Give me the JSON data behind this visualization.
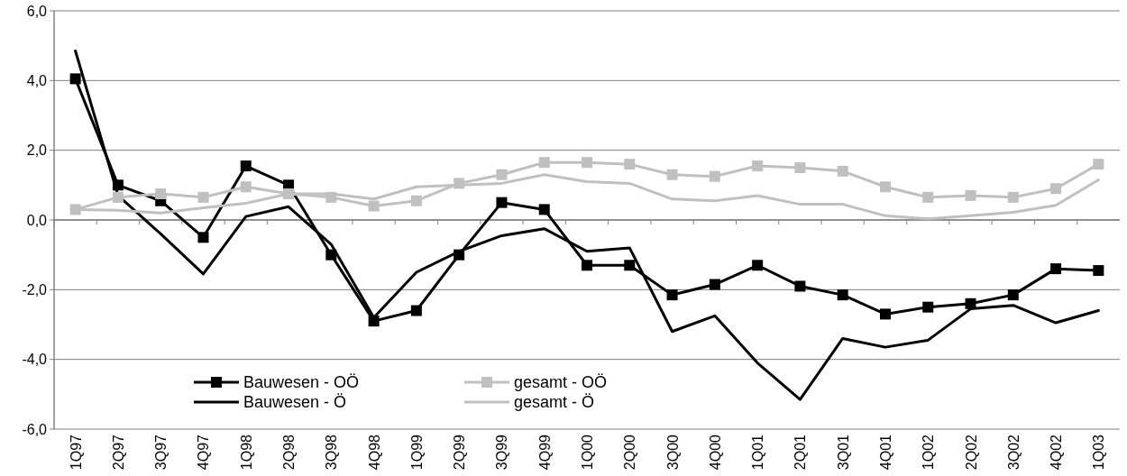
{
  "chart_data": {
    "type": "line",
    "categories": [
      "1Q97",
      "2Q97",
      "3Q97",
      "4Q97",
      "1Q98",
      "2Q98",
      "3Q98",
      "4Q98",
      "1Q99",
      "2Q99",
      "3Q99",
      "4Q99",
      "1Q00",
      "2Q00",
      "3Q00",
      "4Q00",
      "1Q01",
      "2Q01",
      "3Q01",
      "4Q01",
      "1Q02",
      "2Q02",
      "3Q02",
      "4Q02",
      "1Q03"
    ],
    "series": [
      {
        "name": "Bauwesen - OÖ",
        "color": "#000000",
        "marker": "square",
        "values": [
          4.05,
          1.0,
          0.55,
          -0.5,
          1.55,
          1.0,
          -1.0,
          -2.9,
          -2.6,
          -1.0,
          0.5,
          0.3,
          -1.3,
          -1.3,
          -2.15,
          -1.85,
          -1.3,
          -1.9,
          -2.15,
          -2.7,
          -2.5,
          -2.4,
          -2.15,
          -1.4,
          -1.45
        ]
      },
      {
        "name": "Bauwesen - Ö",
        "color": "#000000",
        "marker": "none",
        "values": [
          4.85,
          0.7,
          -0.4,
          -1.55,
          0.1,
          0.38,
          -0.7,
          -2.8,
          -1.5,
          -0.9,
          -0.45,
          -0.25,
          -0.9,
          -0.8,
          -3.2,
          -2.75,
          -4.1,
          -5.15,
          -3.4,
          -3.65,
          -3.45,
          -2.55,
          -2.45,
          -2.95,
          -2.6
        ]
      },
      {
        "name": "gesamt - OÖ",
        "color": "#c0c0c0",
        "marker": "square",
        "values": [
          0.3,
          0.65,
          0.75,
          0.65,
          0.95,
          0.75,
          0.65,
          0.4,
          0.55,
          1.05,
          1.3,
          1.65,
          1.65,
          1.6,
          1.3,
          1.25,
          1.55,
          1.5,
          1.4,
          0.95,
          0.65,
          0.7,
          0.65,
          0.9,
          1.6
        ]
      },
      {
        "name": "gesamt - Ö",
        "color": "#c0c0c0",
        "marker": "none",
        "values": [
          0.3,
          0.28,
          0.2,
          0.35,
          0.48,
          0.75,
          0.75,
          0.6,
          0.95,
          1.0,
          1.05,
          1.3,
          1.1,
          1.05,
          0.6,
          0.55,
          0.7,
          0.45,
          0.45,
          0.12,
          0.03,
          0.12,
          0.22,
          0.42,
          1.15
        ]
      }
    ],
    "ylim": [
      -6,
      6
    ],
    "yticks": [
      {
        "value": -6,
        "label": "-6,0"
      },
      {
        "value": -4,
        "label": "-4,0"
      },
      {
        "value": -2,
        "label": "-2,0"
      },
      {
        "value": 0,
        "label": "0,0"
      },
      {
        "value": 2,
        "label": "2,0"
      },
      {
        "value": 4,
        "label": "4,0"
      },
      {
        "value": 6,
        "label": "6,0"
      }
    ],
    "grid": "y",
    "legend": "bottom",
    "line_style": "solid"
  }
}
